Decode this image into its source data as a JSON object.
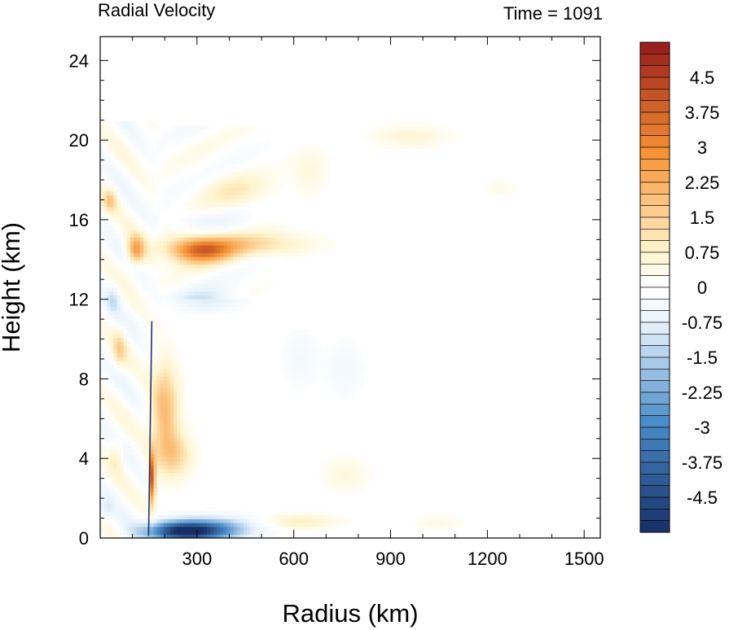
{
  "chart_data": {
    "type": "heatmap",
    "title_left": "Radial Velocity",
    "title_right": "Time = 1091",
    "xlabel": "Radius (km)",
    "ylabel": "Height (km)",
    "xlim": [
      0,
      1550
    ],
    "ylim": [
      0,
      25.2
    ],
    "x_ticks": [
      300,
      600,
      900,
      1200,
      1500
    ],
    "x_tick_labels": [
      "300",
      "600",
      "900",
      "1200",
      "1500"
    ],
    "y_ticks": [
      0,
      4,
      8,
      12,
      16,
      20,
      24
    ],
    "y_tick_labels": [
      "0",
      "4",
      "8",
      "12",
      "16",
      "20",
      "24"
    ],
    "colorbar": {
      "min": -5.25,
      "max": 5.25,
      "step": 0.25,
      "labels": [
        {
          "value": 4.5,
          "text": "4.5"
        },
        {
          "value": 3.75,
          "text": "3.75"
        },
        {
          "value": 3,
          "text": "3"
        },
        {
          "value": 2.25,
          "text": "2.25"
        },
        {
          "value": 1.5,
          "text": "1.5"
        },
        {
          "value": 0.75,
          "text": "0.75"
        },
        {
          "value": 0,
          "text": "0"
        },
        {
          "value": -0.75,
          "text": "-0.75"
        },
        {
          "value": -1.5,
          "text": "-1.5"
        },
        {
          "value": -2.25,
          "text": "-2.25"
        },
        {
          "value": -3,
          "text": "-3"
        },
        {
          "value": -3.75,
          "text": "-3.75"
        },
        {
          "value": -4.5,
          "text": "-4.5"
        }
      ],
      "colors": {
        "neg_max": "#172e66",
        "neg_mid": "#4a8cc8",
        "neg_low": "#e6f2fb",
        "zero": "#ffffff",
        "pos_low": "#fff4cc",
        "pos_mid": "#f79233",
        "pos_max": "#961a1a"
      }
    },
    "features": [
      {
        "name": "surface-inflow",
        "r": 260,
        "z": 0.35,
        "sr": 80,
        "sz": 0.35,
        "v": -5.0
      },
      {
        "name": "surface-inflow-tail",
        "r": 360,
        "z": 0.5,
        "sr": 90,
        "sz": 0.4,
        "v": -1.8
      },
      {
        "name": "outflow-core-upper",
        "r": 310,
        "z": 14.5,
        "sr": 70,
        "sz": 0.45,
        "v": 3.6
      },
      {
        "name": "outflow-upper-tail",
        "r": 470,
        "z": 14.8,
        "sr": 120,
        "sz": 0.4,
        "v": 1.3
      },
      {
        "name": "outflow-inner-upper",
        "r": 110,
        "z": 14.5,
        "sr": 20,
        "sz": 0.5,
        "v": 2.5
      },
      {
        "name": "eyewall-jet",
        "r": 162,
        "z": 3.0,
        "sr": 6,
        "sz": 0.9,
        "v": 4.2
      },
      {
        "name": "eyewall-low",
        "r": 200,
        "z": 6.5,
        "sr": 30,
        "sz": 1.6,
        "v": 2.0
      },
      {
        "name": "eyewall-mid",
        "r": 230,
        "z": 4.2,
        "sr": 40,
        "sz": 0.8,
        "v": 1.4
      },
      {
        "name": "inner-band-a",
        "r": 30,
        "z": 17.0,
        "sr": 15,
        "sz": 0.4,
        "v": 1.5
      },
      {
        "name": "inner-band-b",
        "r": 60,
        "z": 9.5,
        "sr": 15,
        "sz": 0.6,
        "v": 1.2
      },
      {
        "name": "inner-band-c",
        "r": 50,
        "z": 4.2,
        "sr": 15,
        "sz": 0.6,
        "v": 0.8
      },
      {
        "name": "inner-blue-a",
        "r": 40,
        "z": 12.0,
        "sr": 15,
        "sz": 0.5,
        "v": -0.9
      },
      {
        "name": "inner-blue-b",
        "r": 20,
        "z": 1.5,
        "sr": 15,
        "sz": 0.4,
        "v": -0.7
      },
      {
        "name": "upper-band-orange",
        "r": 420,
        "z": 17.5,
        "sr": 80,
        "sz": 0.6,
        "v": 0.8
      },
      {
        "name": "upper-band-blue",
        "r": 300,
        "z": 16.0,
        "sr": 80,
        "sz": 0.4,
        "v": -0.5
      },
      {
        "name": "mid-blue-outflow",
        "r": 330,
        "z": 12.0,
        "sr": 70,
        "sz": 0.4,
        "v": -0.9
      },
      {
        "name": "anvil-far",
        "r": 960,
        "z": 20.2,
        "sr": 80,
        "sz": 0.4,
        "v": 0.6
      },
      {
        "name": "anvil-mid",
        "r": 650,
        "z": 18.5,
        "sr": 40,
        "sz": 0.8,
        "v": 0.5
      },
      {
        "name": "low-level-outflow",
        "r": 620,
        "z": 0.85,
        "sr": 80,
        "sz": 0.25,
        "v": 0.9
      },
      {
        "name": "low-level-outflow-far",
        "r": 1050,
        "z": 0.8,
        "sr": 50,
        "sz": 0.25,
        "v": 0.4
      },
      {
        "name": "mid-orange-patch",
        "r": 760,
        "z": 3.2,
        "sr": 50,
        "sz": 0.6,
        "v": 0.5
      },
      {
        "name": "upper-orange-far",
        "r": 1240,
        "z": 17.6,
        "sr": 35,
        "sz": 0.3,
        "v": 0.35
      },
      {
        "name": "mid-blue-patch-a",
        "r": 620,
        "z": 9.0,
        "sr": 40,
        "sz": 1.0,
        "v": -0.4
      },
      {
        "name": "mid-blue-patch-b",
        "r": 760,
        "z": 8.5,
        "sr": 40,
        "sz": 1.0,
        "v": -0.4
      }
    ]
  }
}
